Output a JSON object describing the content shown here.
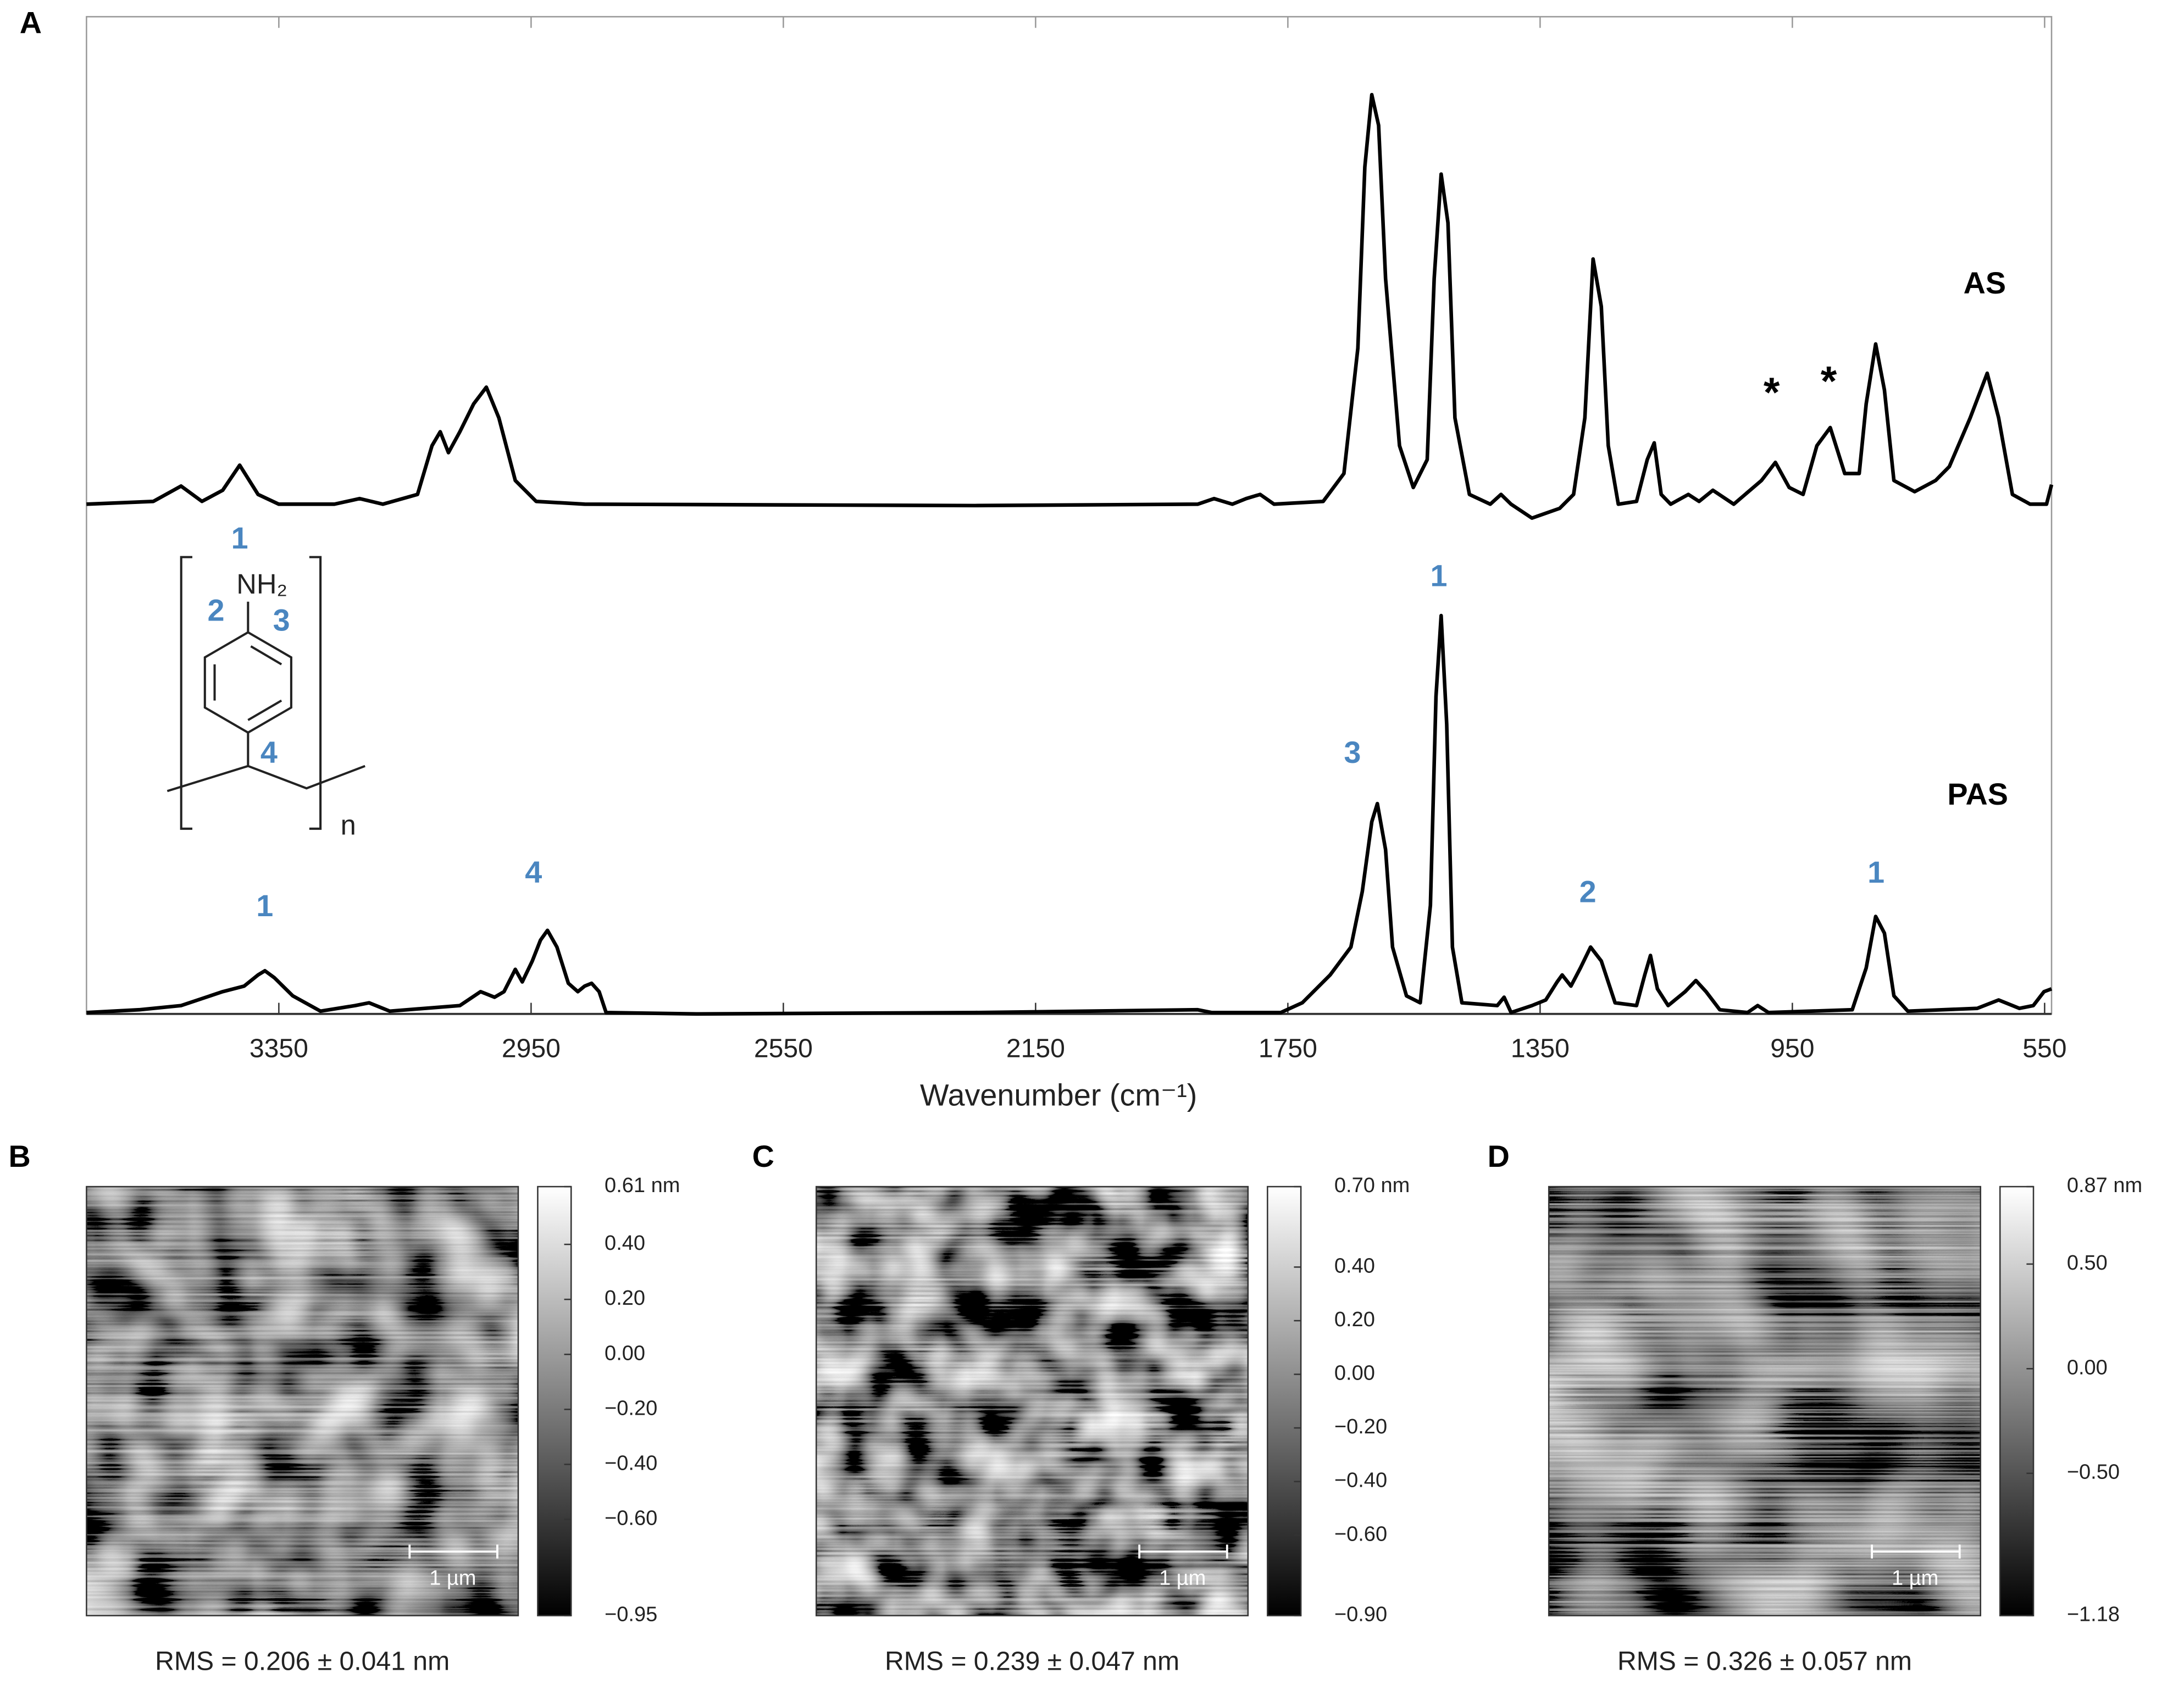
{
  "panel_labels": [
    "A",
    "B",
    "C",
    "D"
  ],
  "chart_data": {
    "type": "line",
    "xlabel": "Wavenumber (cm⁻¹)",
    "xlim": [
      3655,
      539
    ],
    "xticks": [
      3350,
      2950,
      2550,
      2150,
      1750,
      1350,
      950,
      550
    ],
    "ylim": [
      0,
      716
    ],
    "color": "#000000",
    "series": [
      {
        "name": "AS",
        "x": [
          3655,
          3549,
          3505,
          3472,
          3439,
          3412,
          3383,
          3350,
          3262,
          3222,
          3185,
          3130,
          3107,
          3094,
          3081,
          3063,
          3041,
          3021,
          3001,
          2975,
          2942,
          2865,
          2246,
          1893,
          1867,
          1838,
          1816,
          1794,
          1772,
          1694,
          1661,
          1639,
          1628,
          1617,
          1606,
          1595,
          1573,
          1551,
          1529,
          1518,
          1507,
          1496,
          1485,
          1462,
          1429,
          1412,
          1396,
          1363,
          1319,
          1297,
          1279,
          1266,
          1253,
          1242,
          1226,
          1197,
          1180,
          1169,
          1158,
          1143,
          1115,
          1098,
          1076,
          1043,
          999,
          977,
          955,
          933,
          911,
          890,
          867,
          844,
          833,
          818,
          804,
          789,
          756,
          723,
          701,
          668,
          641,
          623,
          601,
          573,
          547,
          539
        ],
        "values": [
          366,
          368,
          379,
          368,
          376,
          394,
          373,
          366,
          366,
          370,
          366,
          373,
          408,
          418,
          403,
          418,
          438,
          450,
          428,
          383,
          368,
          366,
          365,
          366,
          370,
          366,
          370,
          373,
          366,
          368,
          388,
          478,
          608,
          660,
          638,
          528,
          408,
          378,
          398,
          528,
          603,
          568,
          428,
          373,
          366,
          373,
          366,
          356,
          363,
          373,
          428,
          542,
          508,
          408,
          366,
          368,
          398,
          410,
          373,
          366,
          373,
          368,
          376,
          366,
          383,
          396,
          378,
          373,
          408,
          421,
          388,
          388,
          438,
          481,
          448,
          383,
          375,
          383,
          393,
          428,
          460,
          428,
          373,
          366,
          366,
          380
        ]
      },
      {
        "name": "PAS",
        "x": [
          3655,
          3571,
          3505,
          3439,
          3405,
          3383,
          3372,
          3357,
          3328,
          3284,
          3229,
          3207,
          3174,
          3063,
          3030,
          3008,
          2993,
          2975,
          2964,
          2948,
          2935,
          2924,
          2909,
          2891,
          2876,
          2865,
          2854,
          2842,
          2831,
          2688,
          2246,
          1893,
          1871,
          1761,
          1727,
          1683,
          1650,
          1632,
          1617,
          1608,
          1595,
          1584,
          1562,
          1540,
          1524,
          1515,
          1507,
          1498,
          1489,
          1474,
          1418,
          1407,
          1396,
          1363,
          1341,
          1323,
          1315,
          1301,
          1286,
          1270,
          1253,
          1231,
          1197,
          1184,
          1175,
          1164,
          1147,
          1120,
          1103,
          1087,
          1065,
          1021,
          1005,
          988,
          855,
          833,
          818,
          804,
          789,
          767,
          657,
          623,
          590,
          568,
          551,
          539
        ],
        "values": [
          1,
          3,
          6,
          16,
          20,
          28,
          31,
          26,
          13,
          2,
          6,
          8,
          2,
          6,
          16,
          12,
          16,
          32,
          23,
          38,
          53,
          60,
          48,
          22,
          16,
          20,
          22,
          16,
          1,
          0,
          1,
          3,
          1,
          1,
          8,
          28,
          48,
          88,
          138,
          151,
          118,
          48,
          13,
          8,
          78,
          228,
          286,
          208,
          48,
          8,
          6,
          12,
          1,
          6,
          10,
          23,
          28,
          20,
          33,
          48,
          38,
          8,
          6,
          28,
          42,
          18,
          6,
          16,
          24,
          16,
          3,
          1,
          6,
          1,
          3,
          33,
          70,
          58,
          13,
          2,
          4,
          10,
          4,
          6,
          16,
          18
        ]
      }
    ],
    "markers": [
      "*",
      "*"
    ],
    "peak_labels": [
      "1",
      "4",
      "3",
      "1",
      "2",
      "1"
    ]
  },
  "structure": {
    "labels": [
      "1",
      "2",
      "3",
      "4"
    ],
    "group": "NH₂",
    "repeat": "n"
  },
  "afm": [
    {
      "clim": [
        -0.95,
        0.61
      ],
      "ticks": [
        {
          "value": 0.61,
          "label": "0.61 nm"
        },
        {
          "value": 0.4,
          "label": "0.40"
        },
        {
          "value": 0.2,
          "label": "0.20"
        },
        {
          "value": 0,
          "label": "0.00"
        },
        {
          "value": -0.2,
          "label": "−0.20"
        },
        {
          "value": -0.4,
          "label": "−0.40"
        },
        {
          "value": -0.6,
          "label": "−0.60"
        },
        {
          "value": -0.95,
          "label": "−0.95"
        }
      ],
      "scale_bar": "1 µm",
      "rms": "RMS = 0.206 ± 0.041 nm"
    },
    {
      "clim": [
        -0.9,
        0.7
      ],
      "ticks": [
        {
          "value": 0.7,
          "label": "0.70 nm"
        },
        {
          "value": 0.4,
          "label": "0.40"
        },
        {
          "value": 0.2,
          "label": "0.20"
        },
        {
          "value": 0,
          "label": "0.00"
        },
        {
          "value": -0.2,
          "label": "−0.20"
        },
        {
          "value": -0.4,
          "label": "−0.40"
        },
        {
          "value": -0.6,
          "label": "−0.60"
        },
        {
          "value": -0.9,
          "label": "−0.90"
        }
      ],
      "scale_bar": "1 µm",
      "rms": "RMS = 0.239 ± 0.047 nm"
    },
    {
      "clim": [
        -1.18,
        0.87
      ],
      "ticks": [
        {
          "value": 0.87,
          "label": "0.87 nm"
        },
        {
          "value": 0.5,
          "label": "0.50"
        },
        {
          "value": 0,
          "label": "0.00"
        },
        {
          "value": -0.5,
          "label": "−0.50"
        },
        {
          "value": -1.18,
          "label": "−1.18"
        }
      ],
      "scale_bar": "1 µm",
      "rms": "RMS = 0.326 ± 0.057 nm"
    }
  ]
}
